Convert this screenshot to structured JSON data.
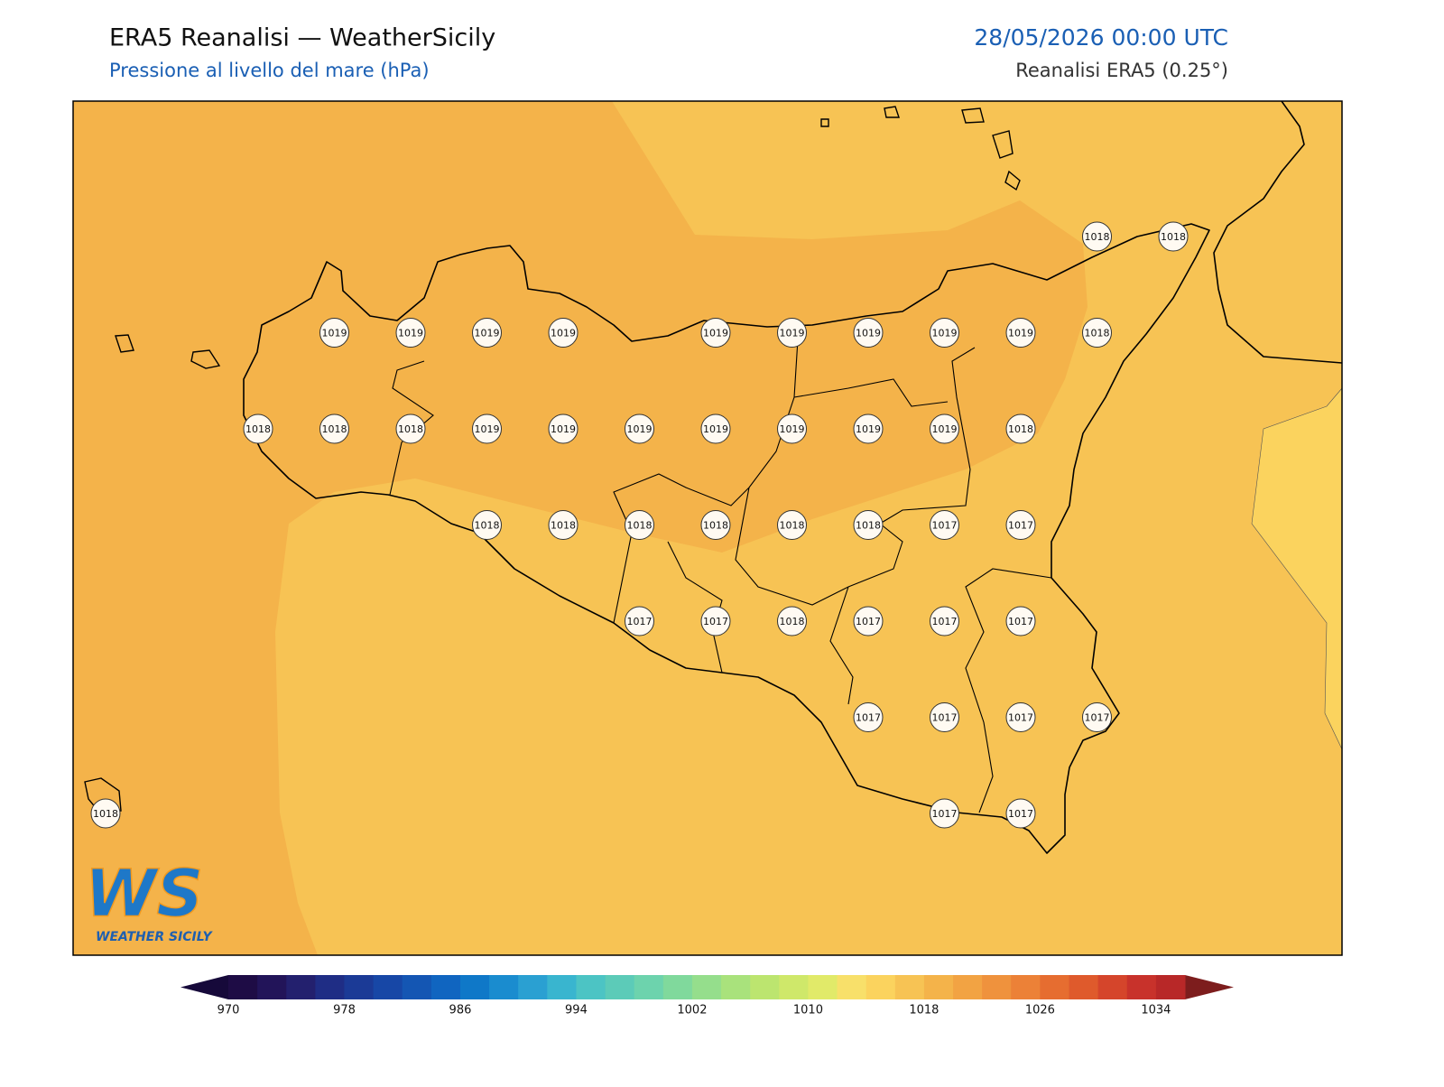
{
  "header": {
    "title": "ERA5 Reanalisi — WeatherSicily",
    "subtitle": "Pressione al livello del mare (hPa)",
    "datetime": "28/05/2026 00:00 UTC",
    "source": "Reanalisi ERA5 (0.25°)"
  },
  "logo": {
    "mark": "WS",
    "text": "WEATHER SICILY"
  },
  "stations": {
    "rows": [
      [
        null,
        null,
        null,
        null,
        null,
        null,
        null,
        null,
        null,
        null,
        null,
        null,
        null,
        1018,
        1018
      ],
      [
        null,
        null,
        null,
        1019,
        1019,
        1019,
        1019,
        null,
        1019,
        1019,
        1019,
        1019,
        1019,
        1018,
        null
      ],
      [
        null,
        null,
        1018,
        1018,
        1018,
        1019,
        1019,
        1019,
        1019,
        1019,
        1019,
        1019,
        1018,
        null,
        null
      ],
      [
        null,
        null,
        null,
        null,
        null,
        1018,
        1018,
        1018,
        1018,
        1018,
        1018,
        1017,
        1017,
        null,
        null
      ],
      [
        null,
        null,
        null,
        null,
        null,
        null,
        null,
        1017,
        1017,
        1018,
        1017,
        1017,
        1017,
        null,
        null
      ],
      [
        null,
        null,
        null,
        null,
        null,
        null,
        null,
        null,
        null,
        null,
        1017,
        1017,
        1017,
        1017,
        null
      ],
      [
        1018,
        null,
        null,
        null,
        null,
        null,
        null,
        null,
        null,
        null,
        null,
        1017,
        1017,
        null,
        null
      ]
    ]
  },
  "colorbar": {
    "clim": [
      970,
      1036
    ],
    "ticks": [
      970,
      978,
      986,
      994,
      1002,
      1010,
      1018,
      1026,
      1034
    ],
    "colors": [
      "#1e0c45",
      "#221459",
      "#23206e",
      "#1f2d85",
      "#1b3a96",
      "#1747a6",
      "#1456b3",
      "#1065c0",
      "#0f78c8",
      "#1a8ccf",
      "#2aa0d2",
      "#39b5cf",
      "#4cc4c4",
      "#5ccbb8",
      "#6dd3ad",
      "#80d99c",
      "#95de8c",
      "#a9e27c",
      "#bce56f",
      "#cfe86a",
      "#e1ea69",
      "#f8e06a",
      "#fbd35e",
      "#f7c354",
      "#f4b34a",
      "#f2a343",
      "#ef923d",
      "#ec8137",
      "#e66d30",
      "#df5a2c",
      "#d5452b",
      "#c8322b",
      "#b82828"
    ],
    "under": "#16093a",
    "over": "#7d1d1d"
  }
}
